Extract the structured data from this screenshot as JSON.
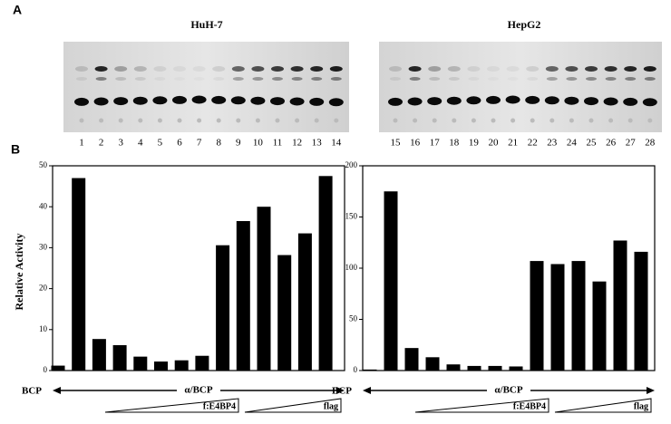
{
  "panel_labels": [
    "A",
    "B"
  ],
  "gels": [
    {
      "title": "HuH-7",
      "lanes": [
        "1",
        "2",
        "3",
        "4",
        "5",
        "6",
        "7",
        "8",
        "9",
        "10",
        "11",
        "12",
        "13",
        "14"
      ]
    },
    {
      "title": "HepG2",
      "lanes": [
        "15",
        "16",
        "17",
        "18",
        "19",
        "20",
        "21",
        "22",
        "23",
        "24",
        "25",
        "26",
        "27",
        "28"
      ]
    }
  ],
  "chart_data": [
    {
      "type": "bar",
      "y_label": "Relative Activity",
      "color": "#000000",
      "values": [
        1.2,
        47,
        7.7,
        6.2,
        3.4,
        2.2,
        2.5,
        3.6,
        30.6,
        36.5,
        40,
        28.2,
        33.5,
        47.5
      ],
      "ylim": [
        0,
        50
      ],
      "yticks": [
        0,
        10,
        20,
        30,
        40,
        50
      ],
      "annotations": {
        "control": "BCP",
        "construct": "α/BCP",
        "wedge1": "f:E4BP4",
        "wedge2": "flag"
      }
    },
    {
      "type": "bar",
      "color": "#000000",
      "values": [
        1,
        175,
        22,
        13,
        6,
        4.5,
        4.5,
        4,
        107,
        104,
        107,
        87,
        127,
        116
      ],
      "ylim": [
        0,
        200
      ],
      "yticks": [
        0,
        50,
        100,
        150,
        200
      ],
      "annotations": {
        "control": "BCP",
        "construct": "α/BCP",
        "wedge1": "f:E4BP4",
        "wedge2": "flag"
      }
    }
  ]
}
